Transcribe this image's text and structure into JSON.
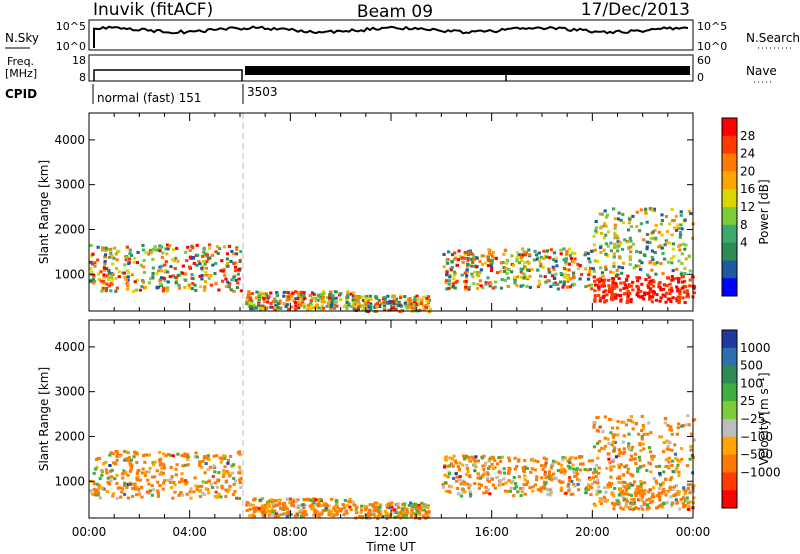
{
  "header": {
    "station": "Inuvik (fitACF)",
    "beam": "Beam 09",
    "date": "17/Dec/2013"
  },
  "panels": {
    "noise": {
      "left_label": "N.Sky",
      "right_label": "N.Search",
      "left_ticks": [
        "10^5",
        "10^0"
      ],
      "right_ticks": [
        "10^5",
        "10^0"
      ]
    },
    "freq": {
      "left_label_1": "Freq.",
      "left_label_2": "[MHz]",
      "right_label": "Nave",
      "left_ticks": [
        "18",
        "8"
      ],
      "right_ticks": [
        "60",
        "0"
      ]
    },
    "cpid": {
      "label": "CPID",
      "programs": [
        "normal (fast) 151",
        "3503"
      ]
    }
  },
  "chart_data": [
    {
      "type": "heatmap",
      "name": "power",
      "ylabel": "Slant Range [km]",
      "y_ticks": [
        1000,
        2000,
        3000,
        4000
      ],
      "ylim": [
        180,
        4600
      ],
      "xlim": [
        0,
        24
      ],
      "colorbar_label": "Power [dB]",
      "colorbar_ticks": [
        "28",
        "24",
        "20",
        "16",
        "12",
        "8",
        "4"
      ],
      "colorbar_colors": [
        "#ff0000",
        "#ff3b00",
        "#ff7a00",
        "#ffa500",
        "#d8d800",
        "#7ccd3a",
        "#3fa86b",
        "#2e8b57",
        "#1e5aa0",
        "#0000ff"
      ],
      "scatter_blocks": [
        {
          "t0": 0.0,
          "t1": 6.0,
          "r0": 650,
          "r1": 1700,
          "level": "high"
        },
        {
          "t0": 6.2,
          "t1": 10.5,
          "r0": 250,
          "r1": 650,
          "level": "high"
        },
        {
          "t0": 10.5,
          "t1": 13.5,
          "r0": 200,
          "r1": 550,
          "level": "high"
        },
        {
          "t0": 14.0,
          "t1": 20.0,
          "r0": 700,
          "r1": 1600,
          "level": "high"
        },
        {
          "t0": 20.0,
          "t1": 24.0,
          "r0": 400,
          "r1": 1000,
          "level": "max"
        },
        {
          "t0": 20.0,
          "t1": 24.0,
          "r0": 1000,
          "r1": 2500,
          "level": "mid"
        }
      ]
    },
    {
      "type": "heatmap",
      "name": "velocity",
      "ylabel": "Slant Range [km]",
      "y_ticks": [
        1000,
        2000,
        3000,
        4000
      ],
      "ylim": [
        180,
        4600
      ],
      "xlim": [
        0,
        24
      ],
      "colorbar_label": "Velocity [m s⁻¹]",
      "colorbar_ticks": [
        "1000",
        "500",
        "100",
        "25",
        "−25",
        "−100",
        "−500",
        "−1000"
      ],
      "colorbar_colors": [
        "#1e3a9e",
        "#2f6fb0",
        "#2e8b57",
        "#3fae3f",
        "#7ccd3a",
        "#bdbdbd",
        "#ffa500",
        "#ff7a00",
        "#ff3b00",
        "#ff0000"
      ],
      "x_ticks": [
        "00:00",
        "04:00",
        "08:00",
        "12:00",
        "16:00",
        "20:00",
        "00:00"
      ],
      "xlabel": "Time UT"
    }
  ]
}
